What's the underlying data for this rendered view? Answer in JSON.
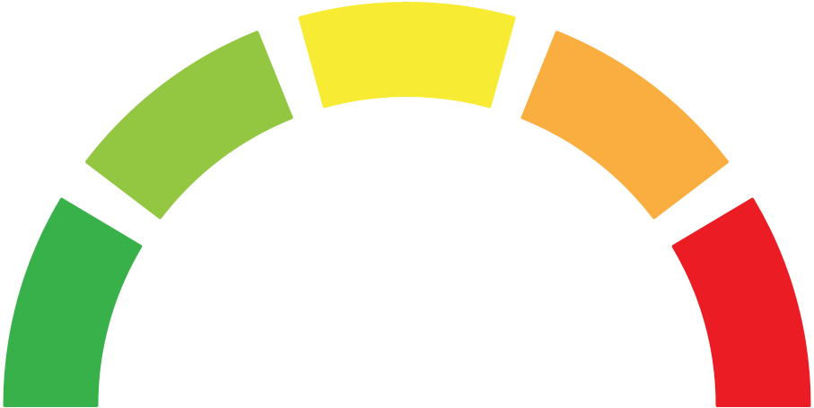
{
  "gauge": {
    "segments": [
      {
        "name": "segment-green",
        "color": "#39B14A"
      },
      {
        "name": "segment-light-green",
        "color": "#93C641"
      },
      {
        "name": "segment-yellow",
        "color": "#F8EB33"
      },
      {
        "name": "segment-orange",
        "color": "#FBAE40"
      },
      {
        "name": "segment-red",
        "color": "#EB1C24"
      }
    ]
  }
}
